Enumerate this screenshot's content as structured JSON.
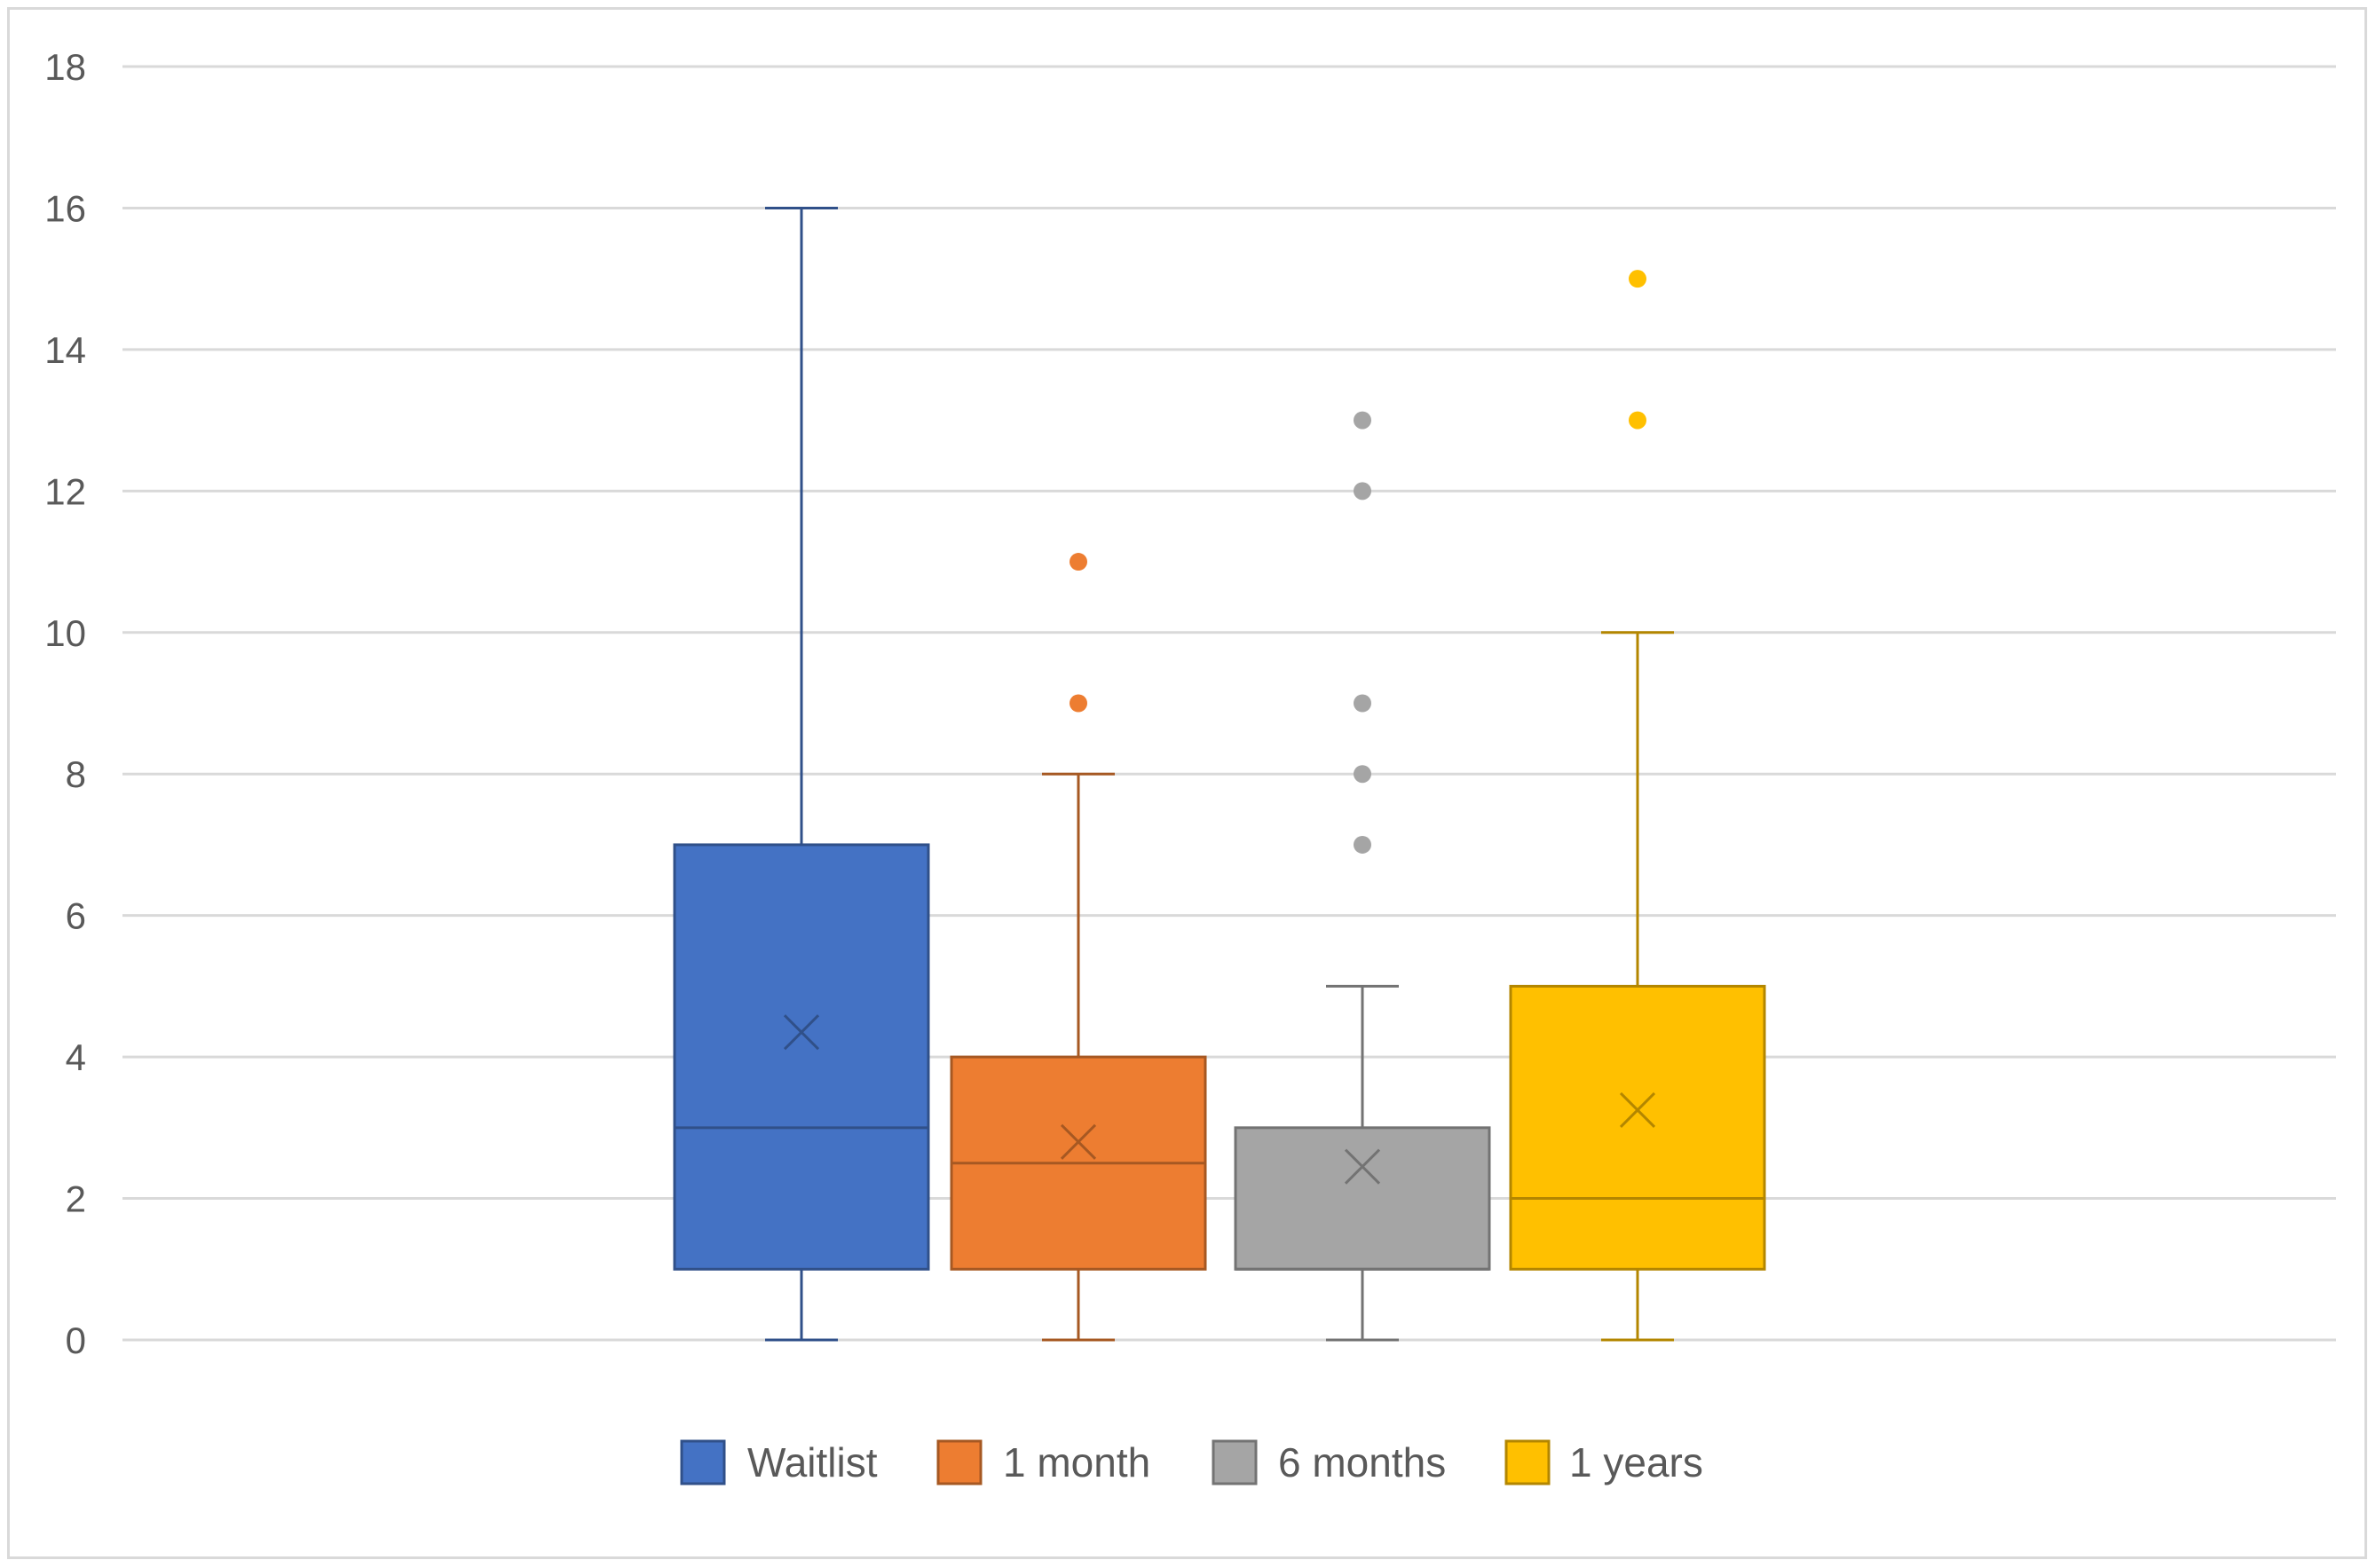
{
  "chart_data": {
    "type": "box",
    "title": "",
    "xlabel": "",
    "ylabel": "",
    "ylim": [
      0,
      18
    ],
    "yticks": [
      0,
      2,
      4,
      6,
      8,
      10,
      12,
      14,
      16,
      18
    ],
    "grid": true,
    "legend_position": "bottom",
    "series": [
      {
        "name": "Waitlist",
        "color": "#4472C4",
        "min": 0,
        "q1": 1,
        "median": 3,
        "q3": 7,
        "max": 16,
        "mean": 4.35,
        "outliers": []
      },
      {
        "name": "1 month",
        "color": "#ED7D31",
        "min": 0,
        "q1": 1,
        "median": 2.5,
        "q3": 4,
        "max": 8,
        "mean": 2.8,
        "outliers": [
          9,
          11
        ]
      },
      {
        "name": "6 months",
        "color": "#A5A5A5",
        "min": 0,
        "q1": 1,
        "median": 1,
        "q3": 3,
        "max": 5,
        "mean": 2.45,
        "outliers": [
          7,
          8,
          9,
          12,
          13
        ]
      },
      {
        "name": "1 years",
        "color": "#FFC000",
        "min": 0,
        "q1": 1,
        "median": 2,
        "q3": 5,
        "max": 10,
        "mean": 3.25,
        "outliers": [
          13,
          15
        ]
      }
    ]
  }
}
